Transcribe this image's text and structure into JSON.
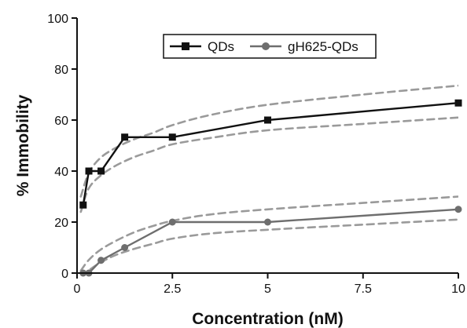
{
  "chart_data": {
    "type": "line",
    "title": "",
    "xlabel": "Concentration (nM)",
    "ylabel": "% Immobility",
    "xlim": [
      0,
      10
    ],
    "ylim": [
      0,
      100
    ],
    "xticks": [
      0,
      2.5,
      5,
      7.5,
      10
    ],
    "xtick_labels": [
      "0",
      "2.5",
      "5",
      "7.5",
      "10"
    ],
    "yticks": [
      0,
      20,
      40,
      60,
      80,
      100
    ],
    "ytick_labels": [
      "0",
      "20",
      "40",
      "60",
      "80",
      "100"
    ],
    "grid": false,
    "legend_position": "top-center",
    "series": [
      {
        "name": "QDs",
        "color": "#111111",
        "marker": "square",
        "x": [
          0.16,
          0.31,
          0.63,
          1.25,
          2.5,
          5,
          10
        ],
        "y": [
          26.7,
          40,
          40,
          53.3,
          53.3,
          60,
          66.7
        ]
      },
      {
        "name": "gH625-QDs",
        "color": "#6e6e6e",
        "marker": "circle",
        "x": [
          0.16,
          0.31,
          0.63,
          1.25,
          2.5,
          5,
          10
        ],
        "y": [
          0,
          0,
          5,
          10,
          20,
          20,
          25
        ]
      }
    ],
    "confidence_bands": [
      {
        "color": "#9a9a9a",
        "style": "dashed",
        "upper": {
          "x": [
            0.1,
            0.3,
            0.6,
            1.0,
            1.5,
            2.0,
            2.5,
            3.5,
            5,
            7.5,
            10
          ],
          "y": [
            30,
            39,
            45,
            49,
            52.5,
            55,
            58,
            62,
            66,
            70,
            73.5
          ]
        },
        "lower": {
          "x": [
            0.1,
            0.3,
            0.6,
            1.0,
            1.5,
            2.0,
            2.5,
            3.5,
            5,
            7.5,
            10
          ],
          "y": [
            24,
            33,
            38,
            42,
            45.5,
            48,
            50.5,
            53,
            56,
            58.5,
            61
          ]
        }
      },
      {
        "color": "#9a9a9a",
        "style": "dashed",
        "upper": {
          "x": [
            0.1,
            0.3,
            0.6,
            1.0,
            1.5,
            2.0,
            2.5,
            3.5,
            5,
            7.5,
            10
          ],
          "y": [
            1,
            5,
            9,
            12.5,
            16,
            18.5,
            20.5,
            23,
            25,
            27.5,
            30
          ]
        },
        "lower": {
          "x": [
            0.1,
            0.3,
            0.6,
            1.0,
            1.5,
            2.0,
            2.5,
            3.5,
            5,
            7.5,
            10
          ],
          "y": [
            -1,
            1,
            4,
            7,
            9.5,
            11.5,
            13.5,
            15.5,
            17,
            19,
            21
          ]
        }
      }
    ]
  }
}
